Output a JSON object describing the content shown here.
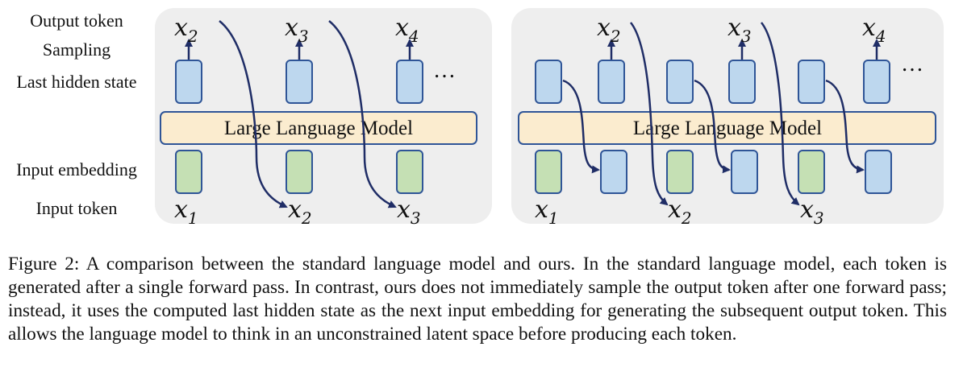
{
  "row_labels": {
    "output_token": "Output token",
    "sampling": "Sampling",
    "last_hidden_state": "Last hidden state",
    "input_embedding": "Input embedding",
    "input_token": "Input token"
  },
  "model_label": "Large Language Model",
  "token_base": "x",
  "left_panel": {
    "input_tokens": [
      "1",
      "2",
      "3"
    ],
    "output_tokens": [
      "2",
      "3",
      "4"
    ],
    "ellipsis": "…"
  },
  "right_panel": {
    "input_tokens": [
      "1",
      "2",
      "3"
    ],
    "output_tokens": [
      "2",
      "3",
      "4"
    ],
    "ellipsis": "…"
  },
  "colors": {
    "panel_bg": "#eeeeee",
    "hidden_box_fill": "#bdd7ee",
    "box_stroke": "#2f5597",
    "embedding_fill": "#c5e0b4",
    "model_fill": "#fbeccf",
    "arrow": "#1f2d66"
  },
  "caption": "Figure 2: A comparison between the standard language model and ours. In the standard language model, each token is generated after a single forward pass. In contrast, ours does not immediately sample the output token after one forward pass; instead, it uses the computed last hidden state as the next input embedding for generating the subsequent output token. This allows the language model to think in an unconstrained latent space before producing each token."
}
